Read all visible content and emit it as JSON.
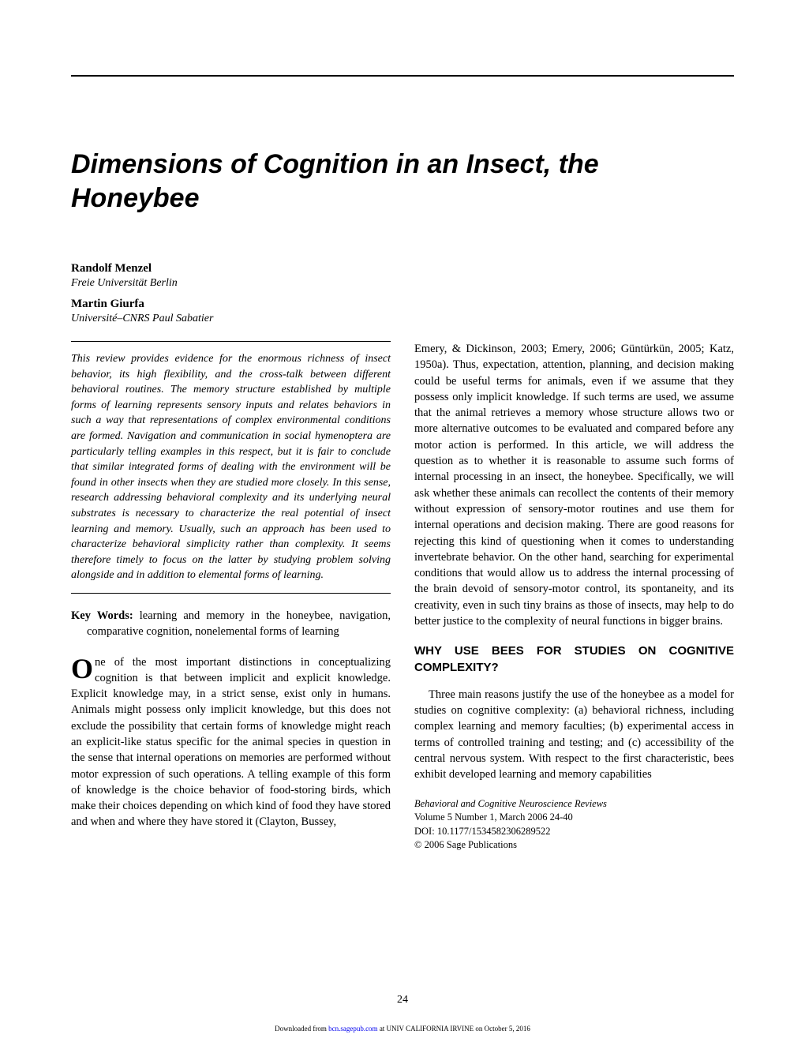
{
  "title": "Dimensions of Cognition in an Insect, the Honeybee",
  "authors": [
    {
      "name": "Randolf Menzel",
      "affil": "Freie Universität Berlin"
    },
    {
      "name": "Martin Giurfa",
      "affil": "Université–CNRS Paul Sabatier"
    }
  ],
  "abstract": "This review provides evidence for the enormous richness of insect behavior, its high flexibility, and the cross-talk between different behavioral routines. The memory structure established by multiple forms of learning represents sensory inputs and relates behaviors in such a way that representations of complex environmental conditions are formed. Navigation and communication in social hymenoptera are particularly telling examples in this respect, but it is fair to conclude that similar integrated forms of dealing with the environment will be found in other insects when they are studied more closely. In this sense, research addressing behavioral complexity and its underlying neural substrates is necessary to characterize the real potential of insect learning and memory. Usually, such an approach has been used to characterize behavioral simplicity rather than complexity. It seems therefore timely to focus on the latter by studying problem solving alongside and in addition to elemental forms of learning.",
  "keywords_label": "Key Words:",
  "keywords": " learning and memory in the honeybee, navigation, comparative cognition, nonelemental forms of learning",
  "left_body_first_word_rest": "ne of the most important distinctions in conceptualizing cognition is that between implicit and explicit knowledge. Explicit knowledge may, in a strict sense, exist only in humans. Animals might possess only implicit knowledge, but this does not exclude the possibility that certain forms of knowledge might reach an explicit-like status specific for the animal species in question in the sense that internal operations on memories are performed without motor expression of such operations. A telling example of this form of knowledge is the choice behavior of food-storing birds, which make their choices depending on which kind of food they have stored and when and where they have stored it (Clayton, Bussey,",
  "right_body_1": "Emery, & Dickinson, 2003; Emery, 2006; Güntürkün, 2005; Katz, 1950a). Thus, expectation, attention, planning, and decision making could be useful terms for animals, even if we assume that they possess only implicit knowledge. If such terms are used, we assume that the animal retrieves a memory whose structure allows two or more alternative outcomes to be evaluated and compared before any motor action is performed. In this article, we will address the question as to whether it is reasonable to assume such forms of internal processing in an insect, the honeybee. Specifically, we will ask whether these animals can recollect the contents of their memory without expression of sensory-motor routines and use them for internal operations and decision making. There are good reasons for rejecting this kind of questioning when it comes to understanding invertebrate behavior. On the other hand, searching for experimental conditions that would allow us to address the internal processing of the brain devoid of sensory-motor control, its spontaneity, and its creativity, even in such tiny brains as those of insects, may help to do better justice to the complexity of neural functions in bigger brains.",
  "section_heading": "WHY USE BEES FOR STUDIES ON COGNITIVE COMPLEXITY?",
  "right_body_2": "Three main reasons justify the use of the honeybee as a model for studies on cognitive complexity: (a) behavioral richness, including complex learning and memory faculties; (b) experimental access in terms of controlled training and testing; and (c) accessibility of the central nervous system. With respect to the first characteristic, bees exhibit developed learning and memory capabilities",
  "pub_journal": "Behavioral and Cognitive Neuroscience Reviews",
  "pub_volume": "Volume 5 Number 1, March 2006  24-40",
  "pub_doi": "DOI: 10.1177/1534582306289522",
  "pub_copyright": "© 2006 Sage Publications",
  "page_number": "24",
  "footer_prefix": "Downloaded from ",
  "footer_link_text": "bcn.sagepub.com",
  "footer_suffix": " at UNIV CALIFORNIA IRVINE on October 5, 2016"
}
